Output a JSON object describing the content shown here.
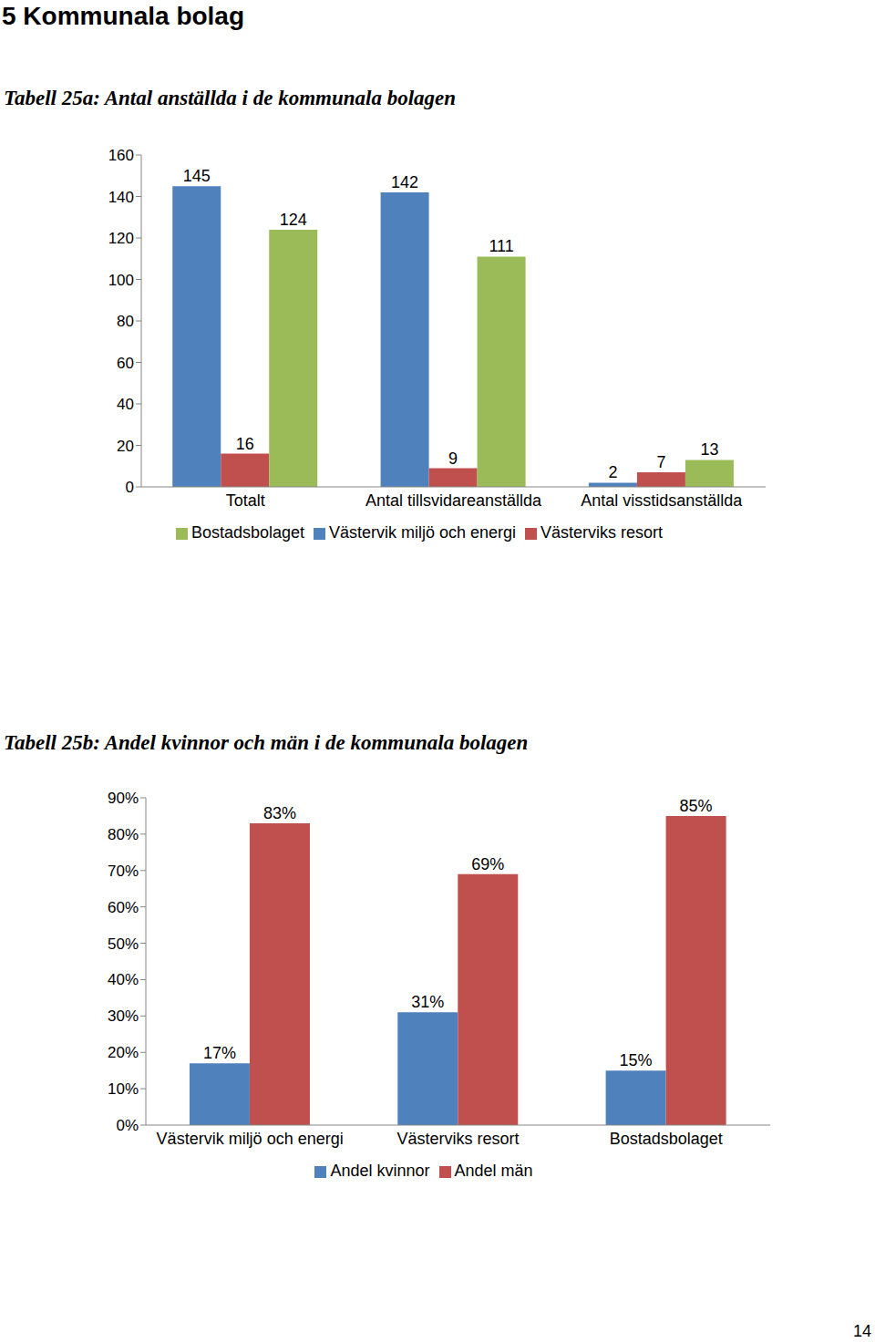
{
  "heading": "5 Kommunala bolag",
  "page_number": "14",
  "chart_data": [
    {
      "type": "bar",
      "title": "Tabell 25a: Antal anställda i de kommunala bolagen",
      "categories": [
        "Totalt",
        "Antal tillsvidareanställda",
        "Antal visstidsanställda"
      ],
      "series": [
        {
          "name": "Västervik miljö och energi",
          "color": "#4F81BD",
          "values": [
            145,
            142,
            2
          ]
        },
        {
          "name": "Västerviks resort",
          "color": "#C0504D",
          "values": [
            16,
            9,
            7
          ]
        },
        {
          "name": "Bostadsbolaget",
          "color": "#9BBB59",
          "values": [
            124,
            111,
            13
          ]
        }
      ],
      "ylim": [
        0,
        160
      ],
      "yticks": [
        0,
        20,
        40,
        60,
        80,
        100,
        120,
        140,
        160
      ],
      "grid": false,
      "legend": "bottom",
      "data_labels": true
    },
    {
      "type": "bar",
      "title": "Tabell 25b: Andel kvinnor och män i de kommunala bolagen",
      "categories": [
        "Västervik miljö och energi",
        "Västerviks resort",
        "Bostadsbolaget"
      ],
      "series": [
        {
          "name": "Andel kvinnor",
          "color": "#4F81BD",
          "values": [
            17,
            31,
            15
          ],
          "value_labels": [
            "17%",
            "31%",
            "15%"
          ]
        },
        {
          "name": "Andel män",
          "color": "#C0504D",
          "values": [
            83,
            69,
            85
          ],
          "value_labels": [
            "83%",
            "69%",
            "85%"
          ]
        }
      ],
      "ylim": [
        0,
        90
      ],
      "yticks": [
        {
          "value": 0,
          "label": "0%"
        },
        {
          "value": 10,
          "label": "10%"
        },
        {
          "value": 20,
          "label": "20%"
        },
        {
          "value": 30,
          "label": "30%"
        },
        {
          "value": 40,
          "label": "40%"
        },
        {
          "value": 50,
          "label": "50%"
        },
        {
          "value": 60,
          "label": "60%"
        },
        {
          "value": 70,
          "label": "70%"
        },
        {
          "value": 80,
          "label": "80%"
        },
        {
          "value": 90,
          "label": "90%"
        }
      ],
      "grid": false,
      "legend": "bottom",
      "data_labels": true
    }
  ]
}
